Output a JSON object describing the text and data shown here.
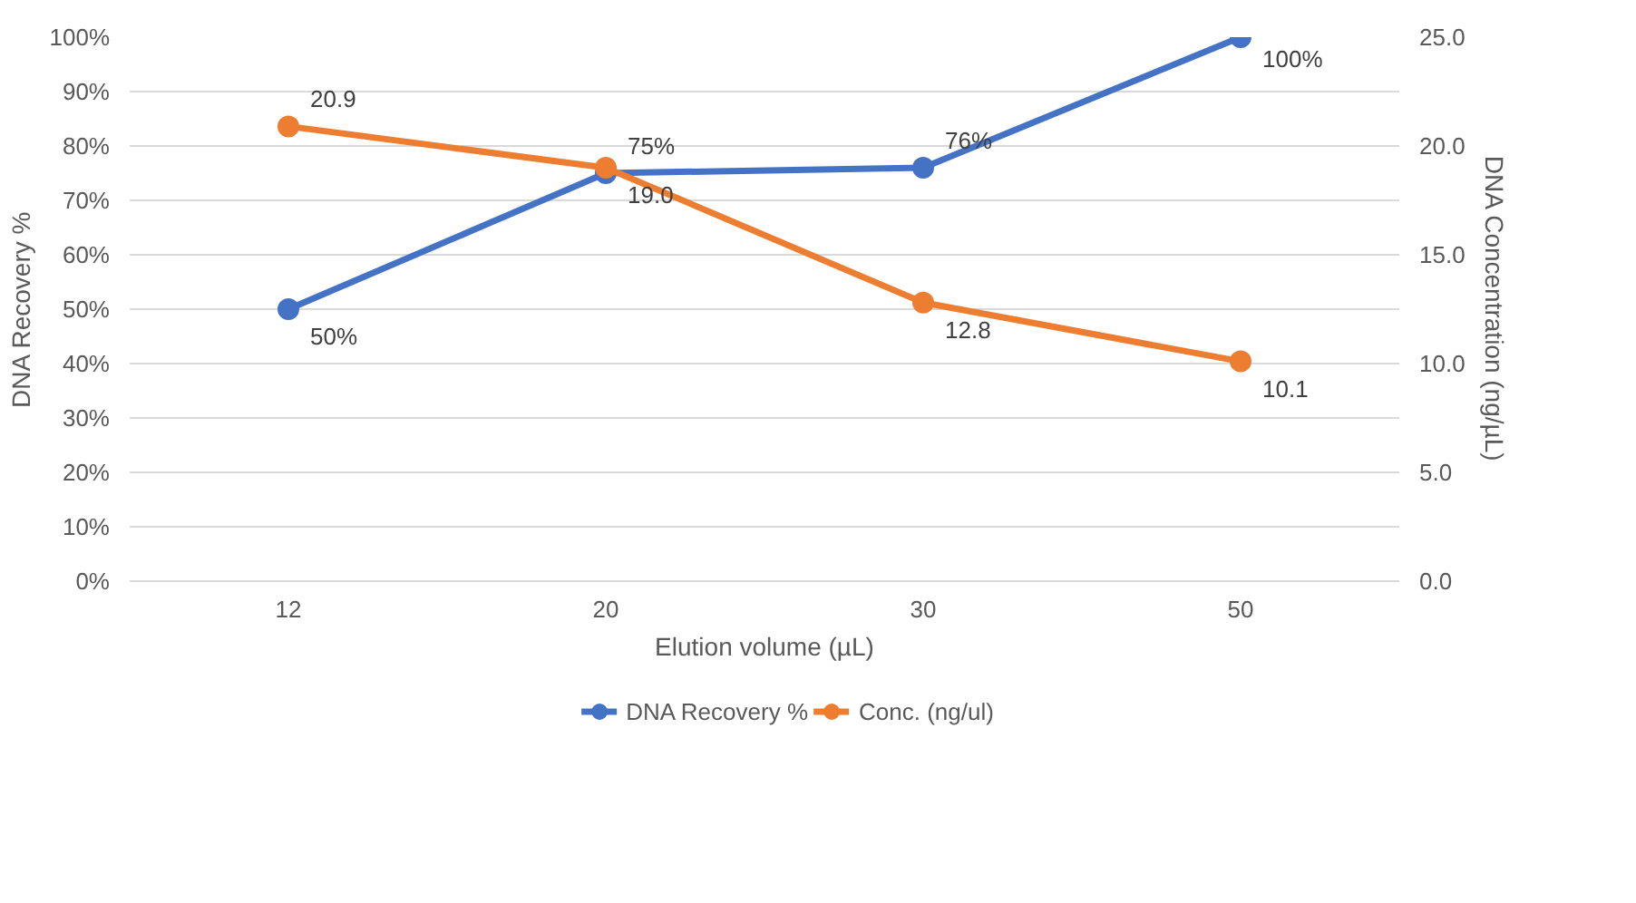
{
  "chart_data": {
    "type": "line",
    "xlabel": "Elution volume (µL)",
    "ylabel": "DNA Recovery %",
    "y2label": "DNA Concentration (ng/µL)",
    "categories": [
      "12",
      "20",
      "30",
      "50"
    ],
    "series": [
      {
        "name": "DNA Recovery %",
        "color": "#4472c4",
        "values": [
          50,
          75,
          76,
          100
        ],
        "value_labels": [
          "50%",
          "75%",
          "76%",
          "100%"
        ]
      },
      {
        "name": "Conc. (ng/ul)",
        "color": "#ed7d31",
        "values": [
          20.9,
          19.0,
          12.8,
          10.1
        ],
        "value_labels": [
          "20.9",
          "19.0",
          "12.8",
          "10.1"
        ],
        "axis": "y2"
      }
    ],
    "ylim": [
      0,
      100
    ],
    "yticks": [
      {
        "value": 0,
        "label": "0%"
      },
      {
        "value": 10,
        "label": "10%"
      },
      {
        "value": 20,
        "label": "20%"
      },
      {
        "value": 30,
        "label": "30%"
      },
      {
        "value": 40,
        "label": "40%"
      },
      {
        "value": 50,
        "label": "50%"
      },
      {
        "value": 60,
        "label": "60%"
      },
      {
        "value": 70,
        "label": "70%"
      },
      {
        "value": 80,
        "label": "80%"
      },
      {
        "value": 90,
        "label": "90%"
      },
      {
        "value": 100,
        "label": "100%"
      }
    ],
    "y2lim": [
      0,
      25
    ],
    "y2ticks": [
      {
        "value": 0,
        "label": "0.0"
      },
      {
        "value": 5,
        "label": "5.0"
      },
      {
        "value": 10,
        "label": "10.0"
      },
      {
        "value": 15,
        "label": "15.0"
      },
      {
        "value": 20,
        "label": "20.0"
      },
      {
        "value": 25,
        "label": "25.0"
      }
    ],
    "grid": "y",
    "legend": "bottom",
    "marker": "circle",
    "line_style": "solid"
  }
}
